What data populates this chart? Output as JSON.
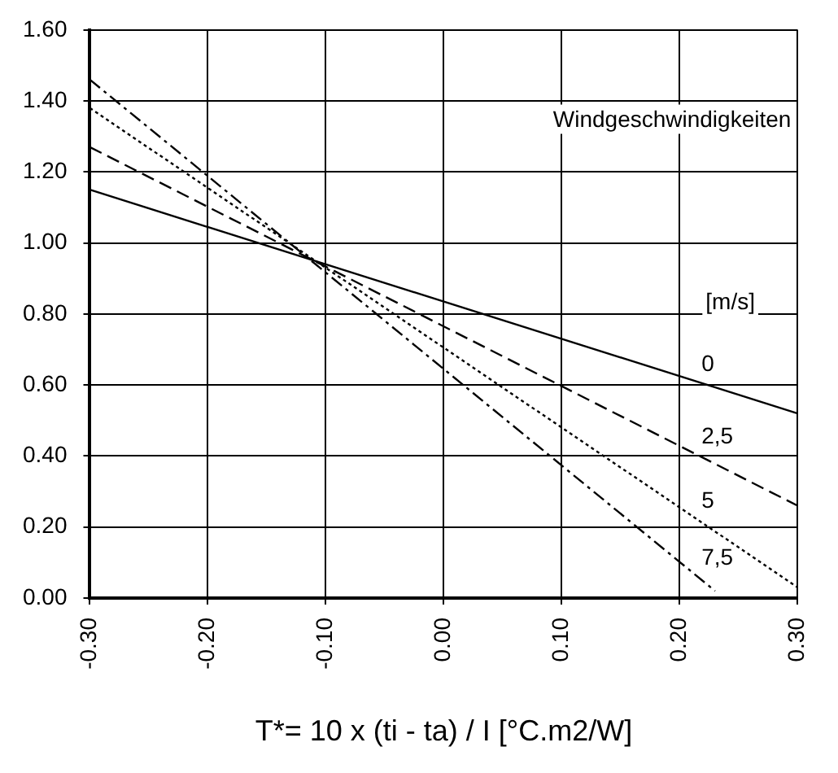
{
  "chart_data": {
    "type": "line",
    "xlabel": "T*= 10 x (ti - ta) / I [°C.m2/W]",
    "annotations": [
      "Windgeschwindigkeiten",
      "[m/s]"
    ],
    "series": [
      {
        "name": "0",
        "color": "#000000",
        "line_style": "solid",
        "x": [
          -0.3,
          0.3
        ],
        "values": [
          1.15,
          0.52
        ]
      },
      {
        "name": "2,5",
        "color": "#000000",
        "line_style": "dashed",
        "x": [
          -0.3,
          0.3
        ],
        "values": [
          1.27,
          0.26
        ]
      },
      {
        "name": "5",
        "color": "#000000",
        "line_style": "dotted",
        "x": [
          -0.3,
          0.3
        ],
        "values": [
          1.38,
          0.03
        ]
      },
      {
        "name": "7,5",
        "color": "#000000",
        "line_style": "dashdot",
        "x": [
          -0.3,
          0.23
        ],
        "values": [
          1.46,
          0.02
        ]
      }
    ],
    "xlim": [
      -0.3,
      0.3
    ],
    "xticks": [
      {
        "value": -0.3,
        "label": "-0.30"
      },
      {
        "value": -0.2,
        "label": "-0.20"
      },
      {
        "value": -0.1,
        "label": "-0.10"
      },
      {
        "value": 0,
        "label": "0.00"
      },
      {
        "value": 0.1,
        "label": "0.10"
      },
      {
        "value": 0.2,
        "label": "0.20"
      },
      {
        "value": 0.3,
        "label": "0.30"
      }
    ],
    "ylim": [
      0,
      1.6
    ],
    "yticks": [
      {
        "value": 0,
        "label": "0.00"
      },
      {
        "value": 0.2,
        "label": "0.20"
      },
      {
        "value": 0.4,
        "label": "0.40"
      },
      {
        "value": 0.6,
        "label": "0.60"
      },
      {
        "value": 0.8,
        "label": "0.80"
      },
      {
        "value": 1,
        "label": "1.00"
      },
      {
        "value": 1.2,
        "label": "1.20"
      },
      {
        "value": 1.4,
        "label": "1.40"
      },
      {
        "value": 1.6,
        "label": "1.60"
      }
    ],
    "grid": true,
    "legend": false,
    "marker": "none"
  }
}
